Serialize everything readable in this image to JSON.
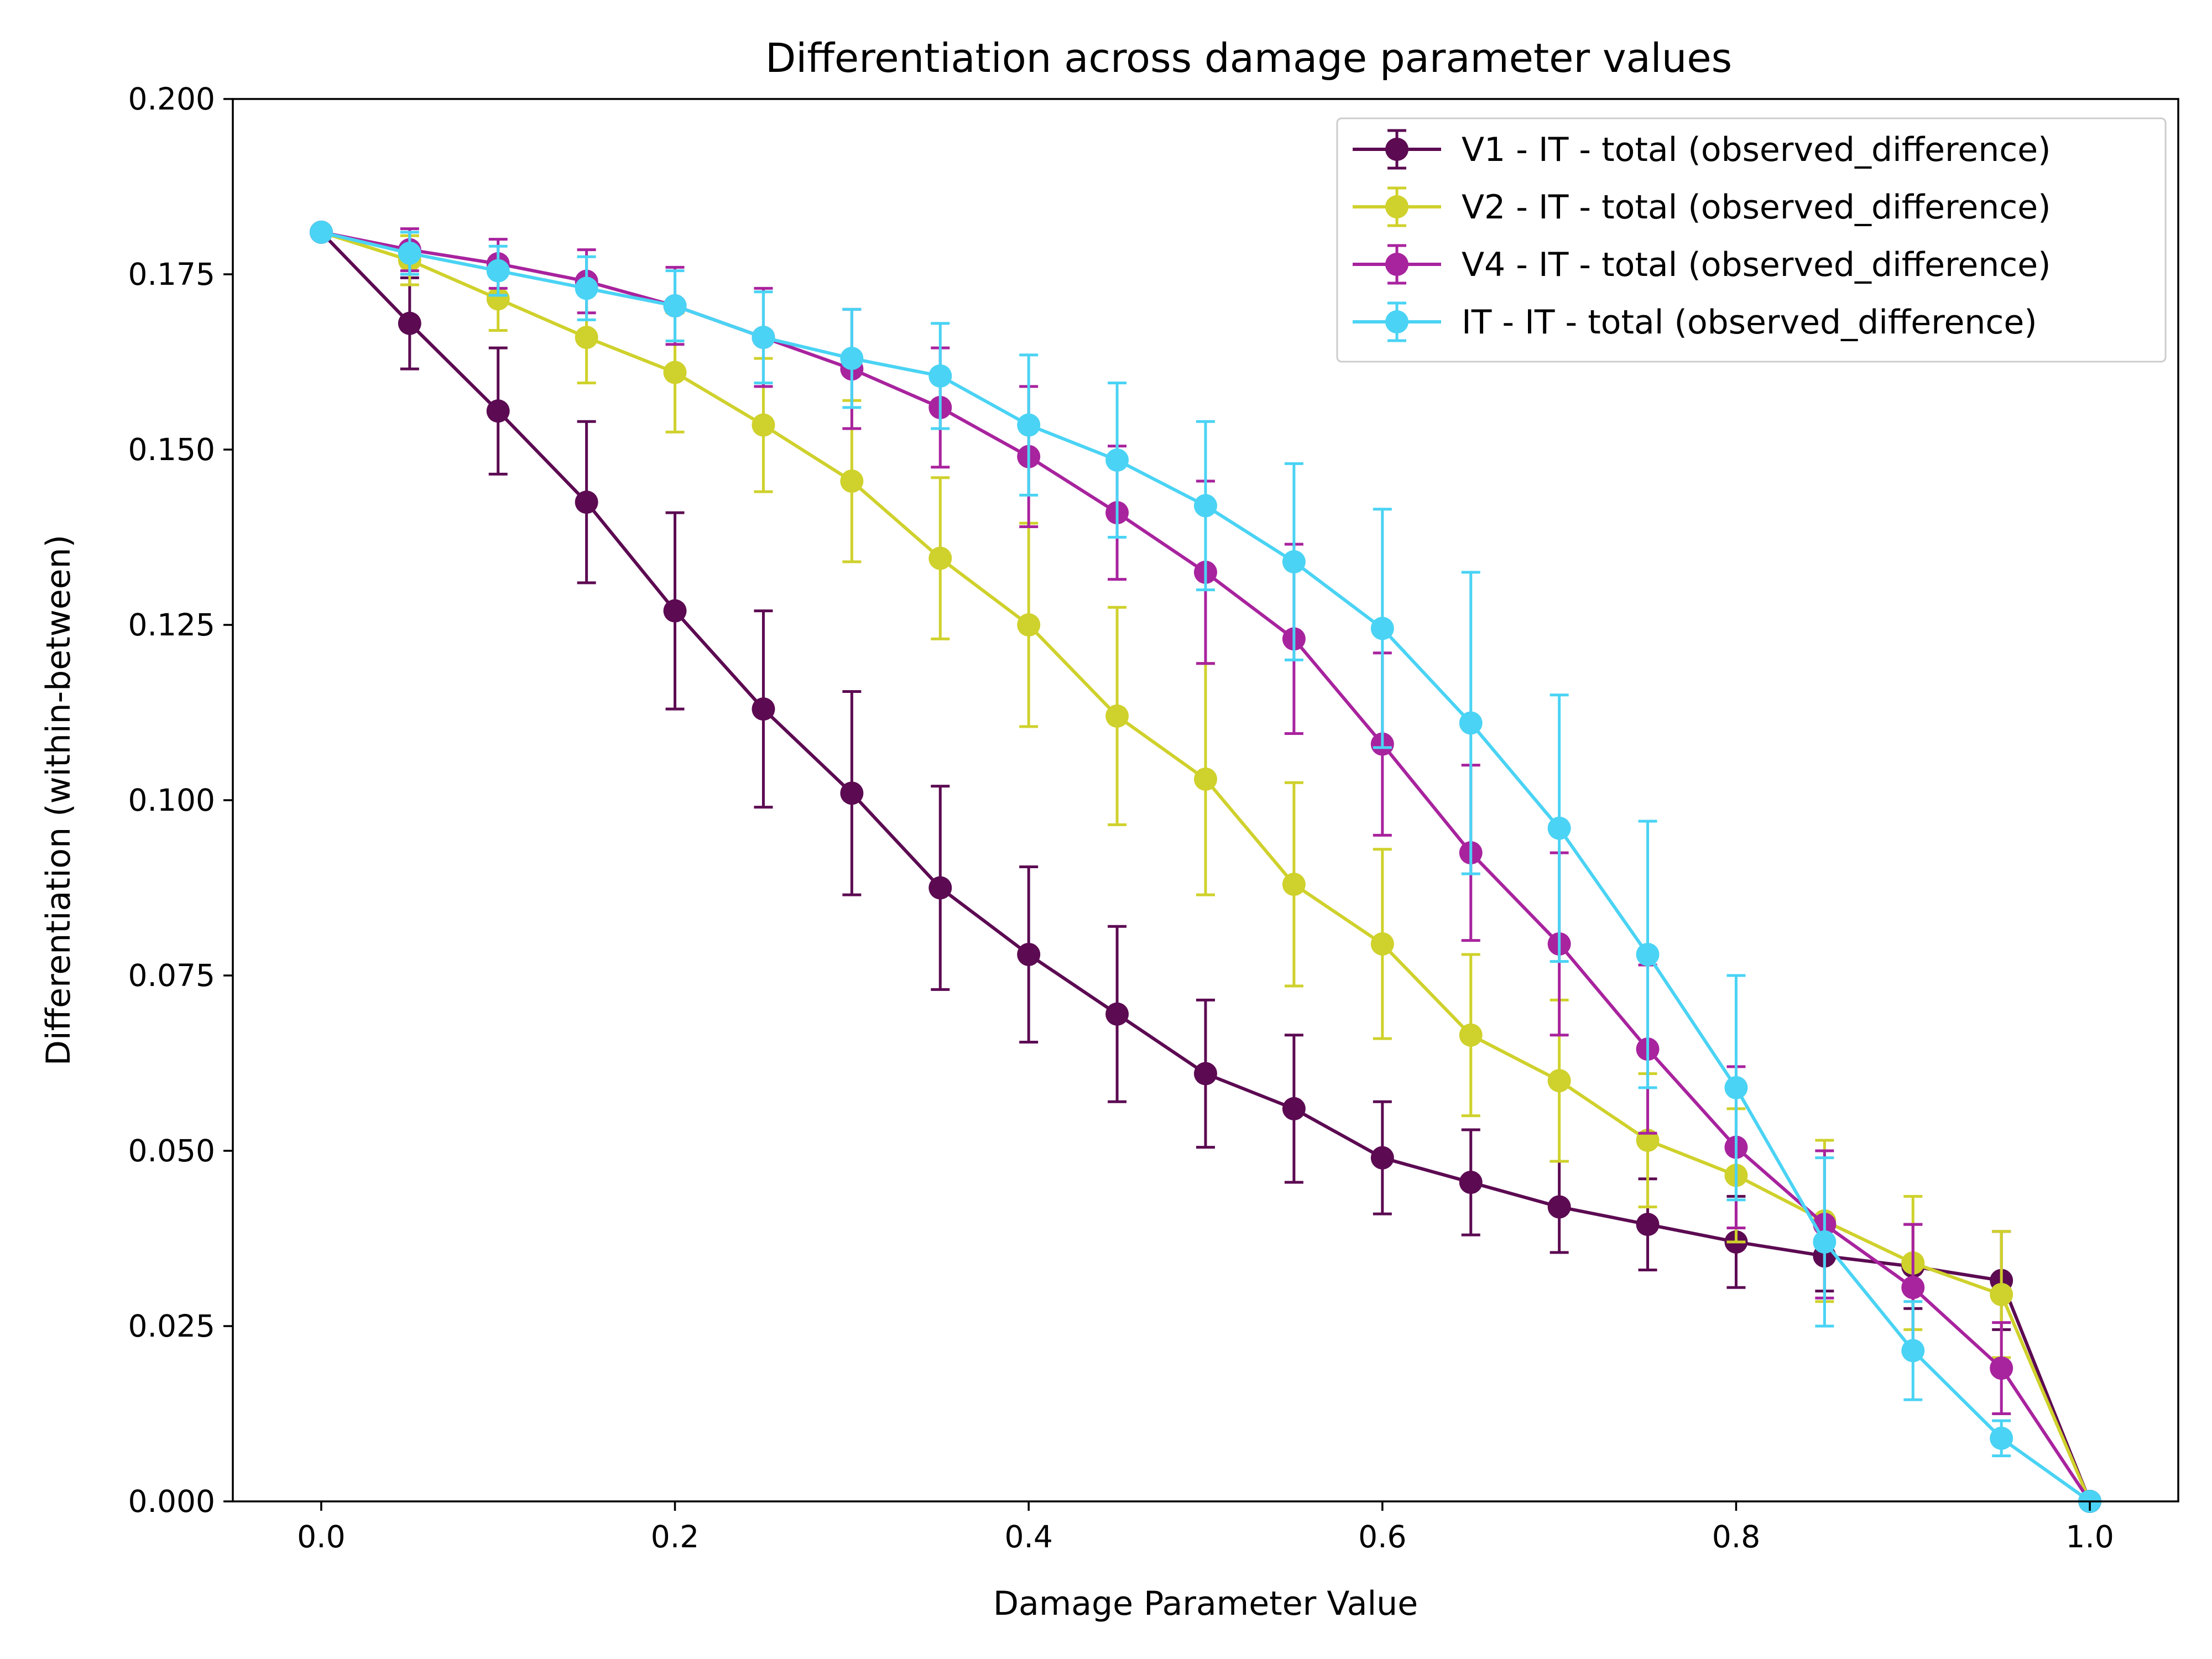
{
  "chart_data": {
    "type": "line",
    "title": "Differentiation across damage parameter values",
    "xlabel": "Damage Parameter Value",
    "ylabel": "Differentiation (within-between)",
    "xlim": [
      -0.05,
      1.05
    ],
    "ylim": [
      0,
      0.2
    ],
    "x_ticks": [
      "0.0",
      "0.2",
      "0.4",
      "0.6",
      "0.8",
      "1.0"
    ],
    "y_ticks": [
      "0.000",
      "0.025",
      "0.050",
      "0.075",
      "0.100",
      "0.125",
      "0.150",
      "0.175",
      "0.200"
    ],
    "grid": false,
    "legend_position": "top-right",
    "x": [
      0.0,
      0.05,
      0.1,
      0.15,
      0.2,
      0.25,
      0.3,
      0.35,
      0.4,
      0.45,
      0.5,
      0.55,
      0.6,
      0.65,
      0.7,
      0.75,
      0.8,
      0.85,
      0.9,
      0.95,
      1.0
    ],
    "series": [
      {
        "name": "V1 - IT - total (observed_difference)",
        "color": "#5c0a52",
        "values": [
          0.181,
          0.168,
          0.1555,
          0.1425,
          0.127,
          0.113,
          0.101,
          0.0875,
          0.078,
          0.0695,
          0.061,
          0.056,
          0.049,
          0.0455,
          0.042,
          0.0395,
          0.037,
          0.035,
          0.0335,
          0.0315,
          0.0
        ],
        "errors": [
          0.0,
          0.0065,
          0.009,
          0.0115,
          0.014,
          0.014,
          0.0145,
          0.0145,
          0.0125,
          0.0125,
          0.0105,
          0.0105,
          0.008,
          0.0075,
          0.0065,
          0.0065,
          0.0065,
          0.005,
          0.006,
          0.007,
          0.0
        ]
      },
      {
        "name": "V2 - IT - total (observed_difference)",
        "color": "#cfd12c",
        "values": [
          0.181,
          0.177,
          0.1715,
          0.166,
          0.161,
          0.1535,
          0.1455,
          0.1345,
          0.125,
          0.112,
          0.103,
          0.088,
          0.0795,
          0.0665,
          0.06,
          0.0515,
          0.0465,
          0.04,
          0.034,
          0.0295,
          0.0
        ],
        "errors": [
          0.0,
          0.0035,
          0.0045,
          0.0065,
          0.0085,
          0.0095,
          0.0115,
          0.0115,
          0.0145,
          0.0155,
          0.0165,
          0.0145,
          0.0135,
          0.0115,
          0.0115,
          0.0095,
          0.0095,
          0.0115,
          0.0095,
          0.009,
          0.0
        ]
      },
      {
        "name": "V4 - IT - total (observed_difference)",
        "color": "#a8239e",
        "values": [
          0.181,
          0.1785,
          0.1765,
          0.174,
          0.1705,
          0.166,
          0.1615,
          0.156,
          0.149,
          0.141,
          0.1325,
          0.123,
          0.108,
          0.0925,
          0.0795,
          0.0645,
          0.0505,
          0.0395,
          0.0305,
          0.019,
          0.0
        ],
        "errors": [
          0.0,
          0.003,
          0.0035,
          0.0045,
          0.0055,
          0.007,
          0.0085,
          0.0085,
          0.01,
          0.0095,
          0.013,
          0.0135,
          0.013,
          0.0125,
          0.013,
          0.012,
          0.0115,
          0.0105,
          0.009,
          0.0065,
          0.0
        ]
      },
      {
        "name": "IT - IT - total (observed_difference)",
        "color": "#4ad3f4",
        "values": [
          0.181,
          0.178,
          0.1755,
          0.173,
          0.1705,
          0.166,
          0.163,
          0.1605,
          0.1535,
          0.1485,
          0.142,
          0.134,
          0.1245,
          0.111,
          0.096,
          0.078,
          0.059,
          0.037,
          0.0215,
          0.009,
          0.0
        ],
        "errors": [
          0.0,
          0.003,
          0.0035,
          0.0045,
          0.005,
          0.0065,
          0.007,
          0.0075,
          0.01,
          0.011,
          0.012,
          0.014,
          0.017,
          0.0215,
          0.019,
          0.019,
          0.016,
          0.012,
          0.007,
          0.0025,
          0.0
        ]
      }
    ]
  }
}
